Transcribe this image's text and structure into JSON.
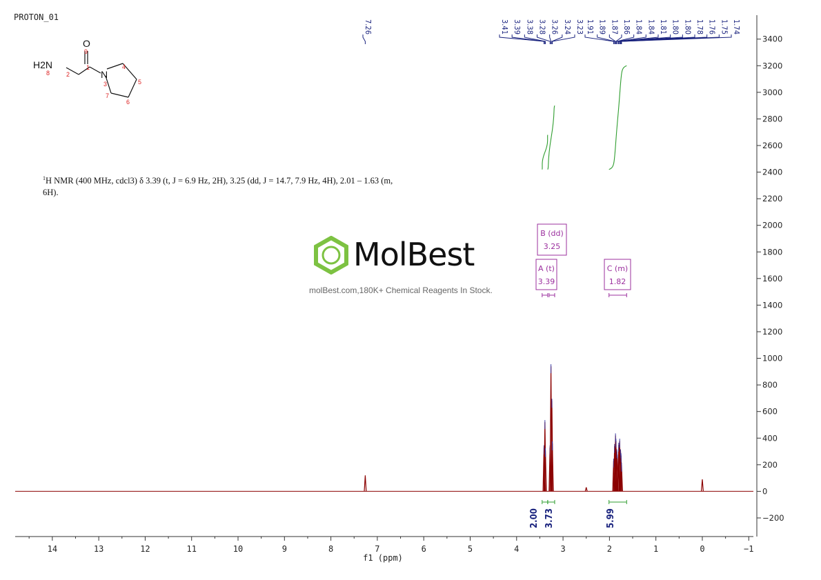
{
  "sample_title": "PROTON_01",
  "molecule": {
    "atoms": [
      {
        "symbol": "O",
        "num": "9"
      },
      {
        "symbol": "",
        "num": "1"
      },
      {
        "symbol": "N",
        "num": "3"
      },
      {
        "symbol": "H2N",
        "num": "8"
      },
      {
        "symbol": "",
        "num": "2"
      },
      {
        "symbol": "",
        "num": "4"
      },
      {
        "symbol": "",
        "num": "5"
      },
      {
        "symbol": "",
        "num": "6"
      },
      {
        "symbol": "",
        "num": "7"
      }
    ]
  },
  "nmr_text": {
    "line1_prefix": "1",
    "line1": "H NMR (400 MHz, cdcl3) δ 3.39 (t, J = 6.9 Hz, 2H), 3.25 (dd, J = 14.7, 7.9 Hz, 4H), 2.01 – 1.63 (m,",
    "line2": "6H)."
  },
  "watermark": {
    "brand": "MolBest",
    "tagline": "molBest.com,180K+ Chemical Reagents In Stock.",
    "brand_color": "#7dc242"
  },
  "chart_data": {
    "type": "line",
    "xlabel": "f1  (ppm)",
    "xlim": [
      14.8,
      -1.1
    ],
    "ylim": [
      -340,
      3580
    ],
    "x_ticks": [
      "14",
      "13",
      "12",
      "11",
      "10",
      "9",
      "8",
      "7",
      "6",
      "5",
      "4",
      "3",
      "2",
      "1",
      "0",
      "−1"
    ],
    "x_tick_values": [
      14,
      13,
      12,
      11,
      10,
      9,
      8,
      7,
      6,
      5,
      4,
      3,
      2,
      1,
      0,
      -1
    ],
    "y_ticks": [
      "3400",
      "3200",
      "3000",
      "2800",
      "2600",
      "2400",
      "2200",
      "2000",
      "1800",
      "1600",
      "1400",
      "1200",
      "1000",
      "800",
      "600",
      "400",
      "200",
      "0",
      "−200"
    ],
    "y_tick_values": [
      3400,
      3200,
      3000,
      2800,
      2600,
      2400,
      2200,
      2000,
      1800,
      1600,
      1400,
      1200,
      1000,
      800,
      600,
      400,
      200,
      0,
      -200
    ],
    "spectrum_color": "#8b0000",
    "peaks": [
      {
        "ppm": 7.26,
        "height": 120
      },
      {
        "ppm": 3.41,
        "height": 330
      },
      {
        "ppm": 3.39,
        "height": 520
      },
      {
        "ppm": 3.38,
        "height": 310
      },
      {
        "ppm": 3.28,
        "height": 330
      },
      {
        "ppm": 3.26,
        "height": 940
      },
      {
        "ppm": 3.24,
        "height": 680
      },
      {
        "ppm": 3.23,
        "height": 360
      },
      {
        "ppm": 1.91,
        "height": 230
      },
      {
        "ppm": 1.89,
        "height": 340
      },
      {
        "ppm": 1.87,
        "height": 420
      },
      {
        "ppm": 1.86,
        "height": 380
      },
      {
        "ppm": 1.84,
        "height": 300
      },
      {
        "ppm": 1.81,
        "height": 260
      },
      {
        "ppm": 1.8,
        "height": 350
      },
      {
        "ppm": 1.78,
        "height": 380
      },
      {
        "ppm": 1.76,
        "height": 300
      },
      {
        "ppm": 1.75,
        "height": 270
      },
      {
        "ppm": 1.74,
        "height": 200
      },
      {
        "ppm": 2.5,
        "height": 30
      },
      {
        "ppm": 0.0,
        "height": 90
      }
    ],
    "peak_labels_top": [
      {
        "ppm": 7.26,
        "label": "7.26"
      },
      {
        "ppm": 3.41,
        "label": "3.41"
      },
      {
        "ppm": 3.39,
        "label": "3.39"
      },
      {
        "ppm": 3.38,
        "label": "3.38"
      },
      {
        "ppm": 3.28,
        "label": "3.28"
      },
      {
        "ppm": 3.26,
        "label": "3.26"
      },
      {
        "ppm": 3.24,
        "label": "3.24"
      },
      {
        "ppm": 3.23,
        "label": "3.23"
      },
      {
        "ppm": 1.91,
        "label": "1.91"
      },
      {
        "ppm": 1.89,
        "label": "1.89"
      },
      {
        "ppm": 1.87,
        "label": "1.87"
      },
      {
        "ppm": 1.86,
        "label": "1.86"
      },
      {
        "ppm": 1.84,
        "label": "1.84"
      },
      {
        "ppm": 1.84,
        "label": "1.84"
      },
      {
        "ppm": 1.81,
        "label": "1.81"
      },
      {
        "ppm": 1.8,
        "label": "1.80"
      },
      {
        "ppm": 1.8,
        "label": "1.80"
      },
      {
        "ppm": 1.78,
        "label": "1.78"
      },
      {
        "ppm": 1.76,
        "label": "1.76"
      },
      {
        "ppm": 1.75,
        "label": "1.75"
      },
      {
        "ppm": 1.74,
        "label": "1.74"
      }
    ],
    "multiplets": [
      {
        "name": "A (t)",
        "shift": "3.39",
        "from": 3.45,
        "to": 3.33
      },
      {
        "name": "B (dd)",
        "shift": "3.25",
        "from": 3.3,
        "to": 3.18
      },
      {
        "name": "C (m)",
        "shift": "1.82",
        "from": 2.01,
        "to": 1.63
      }
    ],
    "integrals": [
      {
        "from": 3.45,
        "to": 3.33,
        "value": "2.00",
        "start": 2420,
        "end": 2680
      },
      {
        "from": 3.33,
        "to": 3.18,
        "value": "3.73",
        "start": 2420,
        "end": 2900
      },
      {
        "from": 2.01,
        "to": 1.63,
        "value": "5.99",
        "start": 2420,
        "end": 3200
      }
    ]
  }
}
